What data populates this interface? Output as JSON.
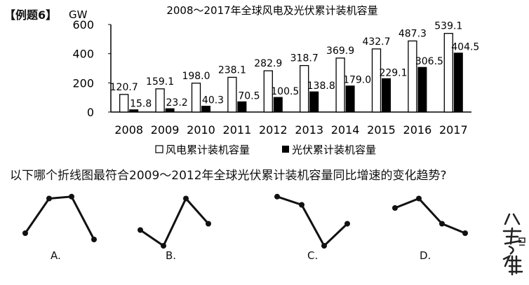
{
  "example_tag": "【例题6】",
  "question": "以下哪个折线图最符合2009～2012年全球光伏累计装机容量同比增速的变化趋势?",
  "options": [
    "A.",
    "B.",
    "C.",
    "D."
  ],
  "logo_text": "八考思维",
  "chart_data": [
    {
      "type": "bar",
      "title": "2008～2017年全球风电及光伏累计装机容量",
      "ylabel": "GW",
      "ylim": [
        0,
        600
      ],
      "yticks": [
        0,
        200,
        400,
        600
      ],
      "categories": [
        "2008",
        "2009",
        "2010",
        "2011",
        "2012",
        "2013",
        "2014",
        "2015",
        "2016",
        "2017"
      ],
      "series": [
        {
          "name": "风电累计装机容量",
          "color": "#ffffff",
          "values": [
            120.7,
            159.1,
            198.0,
            238.1,
            282.9,
            318.7,
            369.9,
            432.7,
            487.3,
            539.1
          ],
          "labels": [
            "120.7",
            "159.1",
            "198.0",
            "238.1",
            "282.9",
            "318.7",
            "369.9",
            "432.7",
            "487.3",
            "539.1"
          ]
        },
        {
          "name": "光伏累计装机容量",
          "color": "#000000",
          "values": [
            15.8,
            23.2,
            40.3,
            70.5,
            100.5,
            138.8,
            179.0,
            229.1,
            306.5,
            404.5
          ],
          "labels": [
            "15.8",
            "23.2",
            "40.3",
            "70.5",
            "100.5",
            "138.8",
            "179.0",
            "229.1",
            "306.5",
            "404.5"
          ]
        }
      ],
      "grid": false,
      "legend": "bottom"
    },
    {
      "type": "line",
      "option": "A",
      "values": [
        0.3,
        0.85,
        0.88,
        0.2
      ]
    },
    {
      "type": "line",
      "option": "B",
      "values": [
        0.35,
        0.1,
        0.85,
        0.45
      ]
    },
    {
      "type": "line",
      "option": "C",
      "values": [
        0.88,
        0.75,
        0.1,
        0.45
      ]
    },
    {
      "type": "line",
      "option": "D",
      "values": [
        0.7,
        0.85,
        0.45,
        0.3
      ]
    }
  ]
}
